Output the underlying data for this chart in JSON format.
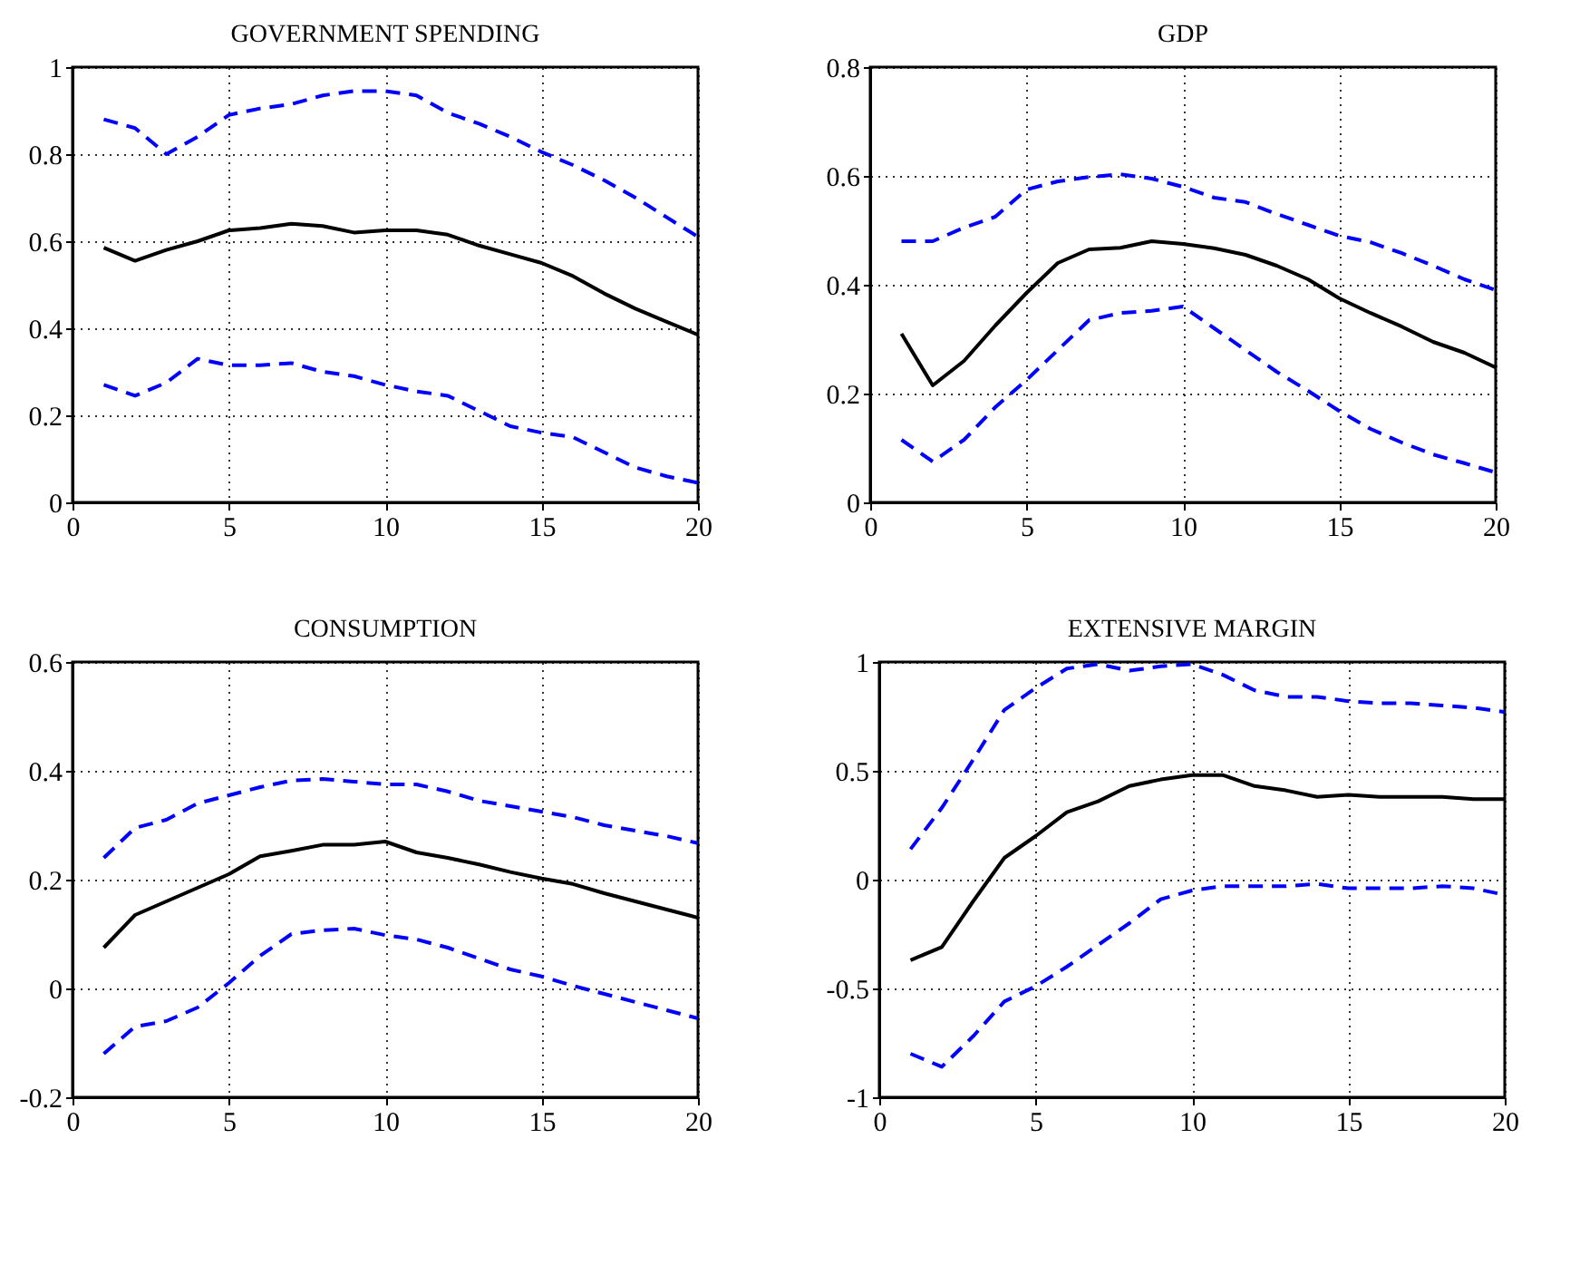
{
  "chart_data": [
    {
      "type": "line",
      "title": "GOVERNMENT SPENDING",
      "x": [
        1,
        2,
        3,
        4,
        5,
        6,
        7,
        8,
        9,
        10,
        11,
        12,
        13,
        14,
        15,
        16,
        17,
        18,
        19,
        20
      ],
      "xlim": [
        0,
        20
      ],
      "xticks": [
        0,
        5,
        10,
        15,
        20
      ],
      "ylim": [
        0,
        1
      ],
      "yticks": [
        0,
        0.2,
        0.4,
        0.6,
        0.8,
        1
      ],
      "grid": true,
      "series": [
        {
          "color": "#000000",
          "line_style": "solid",
          "values": [
            0.585,
            0.555,
            0.58,
            0.6,
            0.625,
            0.63,
            0.64,
            0.635,
            0.62,
            0.625,
            0.625,
            0.615,
            0.59,
            0.57,
            0.55,
            0.52,
            0.48,
            0.445,
            0.415,
            0.385
          ]
        },
        {
          "color": "#0000ff",
          "line_style": "dashed",
          "values": [
            0.88,
            0.86,
            0.8,
            0.84,
            0.89,
            0.905,
            0.915,
            0.935,
            0.945,
            0.945,
            0.935,
            0.895,
            0.87,
            0.84,
            0.805,
            0.775,
            0.74,
            0.7,
            0.655,
            0.61
          ]
        },
        {
          "color": "#0000ff",
          "line_style": "dashed",
          "values": [
            0.27,
            0.245,
            0.275,
            0.33,
            0.315,
            0.315,
            0.32,
            0.3,
            0.29,
            0.27,
            0.255,
            0.245,
            0.21,
            0.175,
            0.16,
            0.15,
            0.115,
            0.08,
            0.06,
            0.045
          ]
        }
      ]
    },
    {
      "type": "line",
      "title": "GDP",
      "x": [
        1,
        2,
        3,
        4,
        5,
        6,
        7,
        8,
        9,
        10,
        11,
        12,
        13,
        14,
        15,
        16,
        17,
        18,
        19,
        20
      ],
      "xlim": [
        0,
        20
      ],
      "xticks": [
        0,
        5,
        10,
        15,
        20
      ],
      "ylim": [
        0,
        0.8
      ],
      "yticks": [
        0,
        0.2,
        0.4,
        0.6,
        0.8
      ],
      "grid": true,
      "series": [
        {
          "color": "#000000",
          "line_style": "solid",
          "values": [
            0.31,
            0.215,
            0.26,
            0.325,
            0.385,
            0.44,
            0.465,
            0.468,
            0.48,
            0.475,
            0.467,
            0.455,
            0.435,
            0.41,
            0.375,
            0.348,
            0.323,
            0.295,
            0.275,
            0.248
          ]
        },
        {
          "color": "#0000ff",
          "line_style": "dashed",
          "values": [
            0.48,
            0.48,
            0.505,
            0.525,
            0.575,
            0.59,
            0.598,
            0.603,
            0.595,
            0.58,
            0.56,
            0.552,
            0.53,
            0.51,
            0.49,
            0.478,
            0.458,
            0.435,
            0.41,
            0.39
          ]
        },
        {
          "color": "#0000ff",
          "line_style": "dashed",
          "values": [
            0.115,
            0.075,
            0.115,
            0.175,
            0.225,
            0.28,
            0.335,
            0.348,
            0.352,
            0.36,
            0.32,
            0.28,
            0.24,
            0.205,
            0.168,
            0.135,
            0.11,
            0.088,
            0.072,
            0.055
          ]
        }
      ]
    },
    {
      "type": "line",
      "title": "CONSUMPTION",
      "x": [
        1,
        2,
        3,
        4,
        5,
        6,
        7,
        8,
        9,
        10,
        11,
        12,
        13,
        14,
        15,
        16,
        17,
        18,
        19,
        20
      ],
      "xlim": [
        0,
        20
      ],
      "xticks": [
        0,
        5,
        10,
        15,
        20
      ],
      "ylim": [
        -0.2,
        0.6
      ],
      "yticks": [
        -0.2,
        0,
        0.2,
        0.4,
        0.6
      ],
      "grid": true,
      "series": [
        {
          "color": "#000000",
          "line_style": "solid",
          "values": [
            0.075,
            0.135,
            0.16,
            0.185,
            0.21,
            0.243,
            0.253,
            0.264,
            0.264,
            0.27,
            0.25,
            0.24,
            0.228,
            0.214,
            0.202,
            0.192,
            0.175,
            0.16,
            0.145,
            0.13
          ]
        },
        {
          "color": "#0000ff",
          "line_style": "dashed",
          "values": [
            0.24,
            0.295,
            0.31,
            0.34,
            0.355,
            0.37,
            0.382,
            0.385,
            0.38,
            0.375,
            0.375,
            0.362,
            0.345,
            0.335,
            0.325,
            0.315,
            0.3,
            0.29,
            0.28,
            0.267
          ]
        },
        {
          "color": "#0000ff",
          "line_style": "dashed",
          "values": [
            -0.12,
            -0.07,
            -0.06,
            -0.035,
            0.01,
            0.06,
            0.1,
            0.107,
            0.11,
            0.098,
            0.09,
            0.075,
            0.055,
            0.035,
            0.022,
            0.005,
            -0.01,
            -0.025,
            -0.04,
            -0.055
          ]
        }
      ]
    },
    {
      "type": "line",
      "title": "EXTENSIVE MARGIN",
      "x": [
        1,
        2,
        3,
        4,
        5,
        6,
        7,
        8,
        9,
        10,
        11,
        12,
        13,
        14,
        15,
        16,
        17,
        18,
        19,
        20
      ],
      "xlim": [
        0,
        20
      ],
      "xticks": [
        0,
        5,
        10,
        15,
        20
      ],
      "ylim": [
        -1,
        1
      ],
      "yticks": [
        -1,
        -0.5,
        0,
        0.5,
        1
      ],
      "grid": true,
      "series": [
        {
          "color": "#000000",
          "line_style": "solid",
          "values": [
            -0.37,
            -0.31,
            -0.1,
            0.1,
            0.2,
            0.31,
            0.36,
            0.43,
            0.46,
            0.48,
            0.48,
            0.43,
            0.41,
            0.38,
            0.39,
            0.38,
            0.38,
            0.38,
            0.37,
            0.37
          ]
        },
        {
          "color": "#0000ff",
          "line_style": "dashed",
          "values": [
            0.14,
            0.33,
            0.55,
            0.78,
            0.88,
            0.97,
            0.99,
            0.96,
            0.98,
            0.99,
            0.94,
            0.87,
            0.84,
            0.84,
            0.82,
            0.81,
            0.81,
            0.8,
            0.79,
            0.77
          ]
        },
        {
          "color": "#0000ff",
          "line_style": "dashed",
          "values": [
            -0.8,
            -0.86,
            -0.72,
            -0.56,
            -0.49,
            -0.4,
            -0.3,
            -0.2,
            -0.09,
            -0.05,
            -0.03,
            -0.03,
            -0.03,
            -0.02,
            -0.04,
            -0.04,
            -0.04,
            -0.03,
            -0.04,
            -0.07
          ]
        }
      ]
    }
  ]
}
